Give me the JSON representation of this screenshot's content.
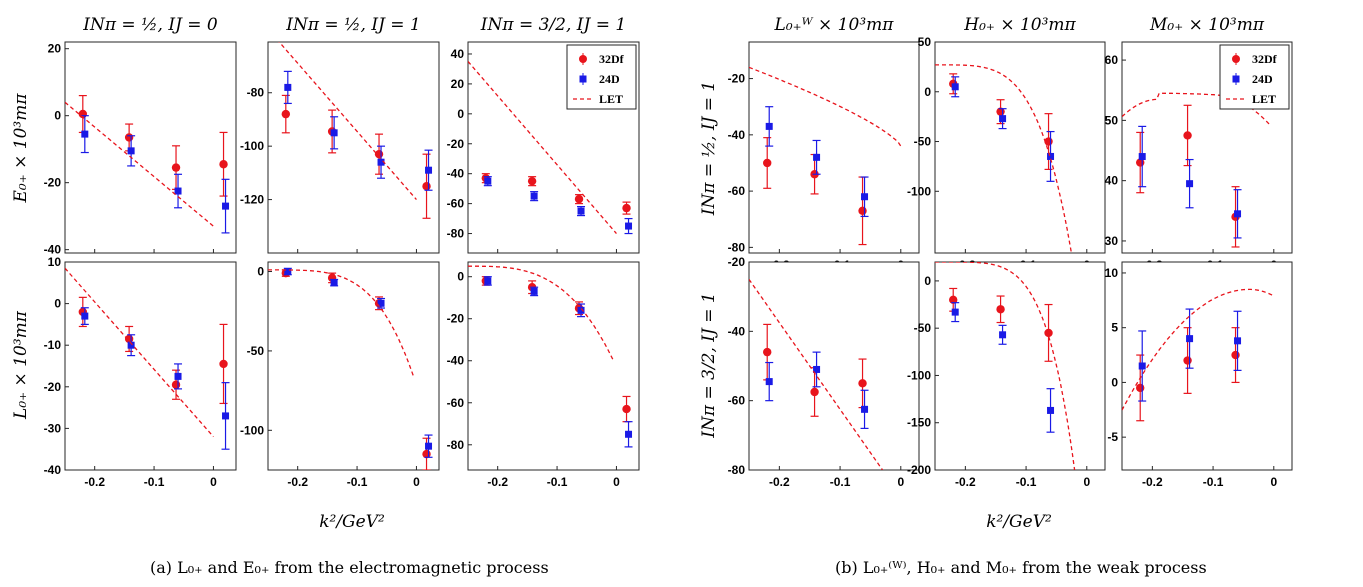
{
  "colors": {
    "s32": "#e8141c",
    "s24": "#1a1ae6"
  },
  "x_label": "k²/GeV²",
  "row_labels_a": [
    "E₀₊ × 10³mπ",
    "L₀₊ × 10³mπ"
  ],
  "row_labels_b": [
    "IΝπ = ½, IJ = 1",
    "IΝπ = 3/2, IJ = 1"
  ],
  "captions": {
    "a": "(a) L₀₊ and E₀₊ from the electromagnetic process",
    "b": "(b) L₀₊⁽ᵂ⁾, H₀₊ and M₀₊ from the weak process"
  },
  "chart_data": [
    {
      "type": "scatter",
      "title": "IΝπ = ½, IJ = 0",
      "ylim": [
        -41,
        22
      ],
      "yticks": [
        20,
        0,
        -20,
        -40
      ],
      "xticks": [
        -0.2,
        -0.1,
        0
      ],
      "series": [
        {
          "name": "32Df",
          "x": [
            -0.22,
            -0.142,
            -0.063,
            0.017
          ],
          "y": [
            0.5,
            -6.5,
            -15.5,
            -14.5
          ],
          "err": [
            5.5,
            4,
            6.5,
            9.5
          ]
        },
        {
          "name": "24D",
          "x": [
            -0.22,
            -0.142,
            -0.063,
            0.017
          ],
          "y": [
            -5.5,
            -10.5,
            -22.5,
            -27
          ],
          "err": [
            5.5,
            4.5,
            5,
            8
          ]
        },
        {
          "name": "LET",
          "x": [
            -0.25,
            0
          ],
          "y": [
            4,
            -33
          ]
        }
      ]
    },
    {
      "type": "scatter",
      "title": "IΝπ = ½, IJ = 1",
      "ylim": [
        -140,
        -61
      ],
      "yticks": [
        -80,
        -100,
        -120
      ],
      "xticks": [
        -0.2,
        -0.1,
        0
      ],
      "series": [
        {
          "name": "32Df",
          "x": [
            -0.22,
            -0.142,
            -0.063,
            0.017
          ],
          "y": [
            -88,
            -94.5,
            -103,
            -115
          ],
          "err": [
            7,
            8,
            7.5,
            12
          ]
        },
        {
          "name": "24D",
          "x": [
            -0.22,
            -0.142,
            -0.063,
            0.017
          ],
          "y": [
            -78,
            -95,
            -106,
            -109
          ],
          "err": [
            6,
            6,
            6,
            7.5
          ]
        },
        {
          "name": "LET",
          "x": [
            -0.235,
            0
          ],
          "y": [
            -60,
            -120
          ]
        }
      ]
    },
    {
      "type": "scatter",
      "title": "IΝπ = 3/2, IJ = 1",
      "ylim": [
        -93,
        48
      ],
      "yticks": [
        40,
        20,
        0,
        -20,
        -40,
        -60,
        -80
      ],
      "xticks": [
        -0.2,
        -0.1,
        0
      ],
      "legend": {
        "position": "top-right",
        "entries": [
          "32Df",
          "24D",
          "LET"
        ]
      },
      "series": [
        {
          "name": "32Df",
          "x": [
            -0.22,
            -0.142,
            -0.063,
            0.017
          ],
          "y": [
            -43,
            -45,
            -57,
            -63
          ],
          "err": [
            3,
            3,
            3,
            4
          ]
        },
        {
          "name": "24D",
          "x": [
            -0.22,
            -0.142,
            -0.063,
            0.017
          ],
          "y": [
            -45,
            -55,
            -65,
            -75
          ],
          "err": [
            3,
            3,
            3,
            5
          ]
        },
        {
          "name": "LET",
          "x": [
            -0.25,
            0
          ],
          "y": [
            35,
            -80
          ]
        }
      ]
    },
    {
      "type": "scatter",
      "title": "L₀₊ᵂ × 10³mπ",
      "ylim": [
        -82,
        -7
      ],
      "yticks": [
        -20,
        -40,
        -60,
        -80
      ],
      "xticks": [
        -0.2,
        -0.1,
        0
      ],
      "series": [
        {
          "name": "32Df",
          "x": [
            -0.22,
            -0.142,
            -0.063
          ],
          "y": [
            -50,
            -54,
            -67
          ],
          "err": [
            9,
            7,
            12
          ]
        },
        {
          "name": "24D",
          "x": [
            -0.22,
            -0.142,
            -0.063
          ],
          "y": [
            -37,
            -48,
            -62
          ],
          "err": [
            7,
            6,
            7
          ]
        },
        {
          "name": "LET",
          "curve": "L_left",
          "x": [
            -0.25,
            0
          ],
          "y": [
            -16,
            -44
          ]
        }
      ]
    },
    {
      "type": "scatter",
      "title": "H₀₊ × 10³mπ",
      "ylim": [
        -162,
        50
      ],
      "yticks": [
        50,
        0,
        -50,
        -100
      ],
      "xticks": [
        -0.2,
        -0.1,
        0
      ],
      "series": [
        {
          "name": "32Df",
          "x": [
            -0.22,
            -0.142,
            -0.063
          ],
          "y": [
            8,
            -20,
            -50
          ],
          "err": [
            10,
            12,
            28
          ]
        },
        {
          "name": "24D",
          "x": [
            -0.22,
            -0.142,
            -0.063
          ],
          "y": [
            5,
            -27,
            -65
          ],
          "err": [
            10,
            10,
            25
          ]
        },
        {
          "name": "LET",
          "curve": "H_top",
          "x": [
            -0.25,
            -0.025
          ],
          "y": [
            27,
            -162
          ]
        }
      ]
    },
    {
      "type": "scatter",
      "title": "M₀₊ × 10³mπ",
      "ylim": [
        28,
        63
      ],
      "yticks": [
        60,
        50,
        40,
        30
      ],
      "xticks": [
        -0.2,
        -0.1,
        0
      ],
      "legend": {
        "position": "top-right",
        "entries": [
          "32Df",
          "24D",
          "LET"
        ]
      },
      "series": [
        {
          "name": "32Df",
          "x": [
            -0.22,
            -0.142,
            -0.063
          ],
          "y": [
            43,
            47.5,
            34
          ],
          "err": [
            5,
            5,
            5
          ]
        },
        {
          "name": "24D",
          "x": [
            -0.22,
            -0.142,
            -0.063
          ],
          "y": [
            44,
            39.5,
            34.5
          ],
          "err": [
            5,
            4,
            4
          ]
        },
        {
          "name": "LET",
          "curve": "M_top",
          "x": [
            -0.25,
            -0.005
          ],
          "y": [
            53,
            28
          ]
        }
      ]
    },
    {
      "type": "scatter",
      "ylim": [
        -40,
        10
      ],
      "yticks": [
        10,
        0,
        -10,
        -20,
        -30,
        -40
      ],
      "xticks": [
        -0.2,
        -0.1,
        0
      ],
      "series": [
        {
          "name": "32Df",
          "x": [
            -0.22,
            -0.142,
            -0.063,
            0.017
          ],
          "y": [
            -2,
            -8.5,
            -19.5,
            -14.5
          ],
          "err": [
            3.5,
            3,
            3.5,
            9.5
          ]
        },
        {
          "name": "24D",
          "x": [
            -0.22,
            -0.142,
            -0.063,
            0.017
          ],
          "y": [
            -3,
            -10,
            -17.5,
            -27
          ],
          "err": [
            2,
            2.5,
            3,
            8
          ]
        },
        {
          "name": "LET",
          "x": [
            -0.25,
            0
          ],
          "y": [
            8.5,
            -32
          ]
        }
      ]
    },
    {
      "type": "scatter",
      "ylim": [
        -125,
        6
      ],
      "yticks": [
        0,
        -50,
        -100
      ],
      "xticks": [
        -0.2,
        -0.1,
        0
      ],
      "series": [
        {
          "name": "32Df",
          "x": [
            -0.22,
            -0.142,
            -0.063,
            0.017
          ],
          "y": [
            -1,
            -4,
            -20,
            -115
          ],
          "err": [
            2,
            3,
            4,
            10
          ]
        },
        {
          "name": "24D",
          "x": [
            -0.22,
            -0.142,
            -0.063,
            0.017
          ],
          "y": [
            0,
            -7,
            -20,
            -110
          ],
          "err": [
            2,
            2,
            3,
            7
          ]
        },
        {
          "name": "LET",
          "curve": "em2",
          "x": [
            -0.25,
            -0.005
          ],
          "y": [
            1,
            -66
          ]
        }
      ]
    },
    {
      "type": "scatter",
      "ylim": [
        -92,
        7
      ],
      "yticks": [
        0,
        -20,
        -40,
        -60,
        -80
      ],
      "xticks": [
        -0.2,
        -0.1,
        0
      ],
      "series": [
        {
          "name": "32Df",
          "x": [
            -0.22,
            -0.142,
            -0.063,
            0.017
          ],
          "y": [
            -2,
            -5,
            -15,
            -63
          ],
          "err": [
            2,
            3,
            3,
            6
          ]
        },
        {
          "name": "24D",
          "x": [
            -0.22,
            -0.142,
            -0.063,
            0.017
          ],
          "y": [
            -2,
            -7,
            -16,
            -75
          ],
          "err": [
            2,
            2,
            3,
            6
          ]
        },
        {
          "name": "LET",
          "curve": "em3",
          "x": [
            -0.25,
            -0.005
          ],
          "y": [
            5,
            -40
          ]
        }
      ]
    },
    {
      "type": "scatter",
      "ylim": [
        -80,
        -20
      ],
      "yticks": [
        -20,
        -40,
        -60,
        -80
      ],
      "xticks": [
        -0.2,
        -0.1,
        0
      ],
      "series": [
        {
          "name": "32Df",
          "x": [
            -0.22,
            -0.142,
            -0.063
          ],
          "y": [
            -46,
            -57.5,
            -55
          ],
          "err": [
            8,
            7,
            7
          ]
        },
        {
          "name": "24D",
          "x": [
            -0.22,
            -0.142,
            -0.063
          ],
          "y": [
            -54.5,
            -51,
            -62.5
          ],
          "err": [
            5.5,
            5,
            5.5
          ]
        },
        {
          "name": "LET",
          "x": [
            -0.25,
            -0.03
          ],
          "y": [
            -25,
            -80
          ]
        }
      ]
    },
    {
      "type": "scatter",
      "ylim": [
        -200,
        20
      ],
      "yticks": [
        0,
        -50,
        -100,
        -150,
        -200
      ],
      "xticks": [
        -0.2,
        -0.1,
        0
      ],
      "series": [
        {
          "name": "32Df",
          "x": [
            -0.22,
            -0.142,
            -0.063
          ],
          "y": [
            -20,
            -30,
            -55
          ],
          "err": [
            12,
            14,
            30
          ]
        },
        {
          "name": "24D",
          "x": [
            -0.22,
            -0.142,
            -0.063
          ],
          "y": [
            -33,
            -57,
            -137
          ],
          "err": [
            10,
            10,
            23
          ]
        },
        {
          "name": "LET",
          "curve": "H_bot",
          "x": [
            -0.25,
            -0.02
          ],
          "y": [
            20,
            -200
          ]
        }
      ]
    },
    {
      "type": "scatter",
      "ylim": [
        -8,
        11
      ],
      "yticks": [
        10,
        5,
        0,
        -5
      ],
      "xticks": [
        -0.2,
        -0.1,
        0
      ],
      "series": [
        {
          "name": "32Df",
          "x": [
            -0.22,
            -0.142,
            -0.063
          ],
          "y": [
            -0.5,
            2,
            2.5
          ],
          "err": [
            3,
            3,
            2.5
          ]
        },
        {
          "name": "24D",
          "x": [
            -0.22,
            -0.142,
            -0.063
          ],
          "y": [
            1.5,
            4,
            3.8
          ],
          "err": [
            3.2,
            2.7,
            2.7
          ]
        },
        {
          "name": "LET",
          "curve": "M_bot",
          "x": [
            -0.25,
            0
          ],
          "y": [
            -6.5,
            7
          ]
        }
      ]
    }
  ]
}
